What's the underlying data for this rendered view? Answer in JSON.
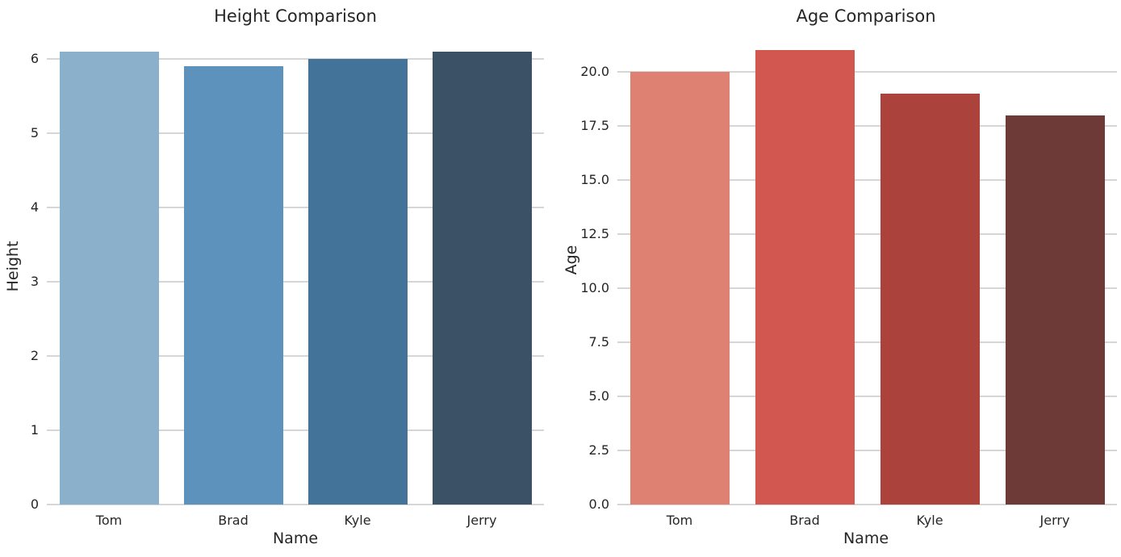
{
  "style": {
    "background": "#ffffff",
    "grid_color": "#d6d6d6",
    "text_color": "#262626"
  },
  "chart_data": [
    {
      "type": "bar",
      "title": "Height Comparison",
      "xlabel": "Name",
      "ylabel": "Height",
      "categories": [
        "Tom",
        "Brad",
        "Kyle",
        "Jerry"
      ],
      "values": [
        6.1,
        5.9,
        6.0,
        6.1
      ],
      "ylim": [
        0,
        6.405
      ],
      "yticks": [
        0,
        1,
        2,
        3,
        4,
        5,
        6
      ],
      "ytick_labels": [
        "0",
        "1",
        "2",
        "3",
        "4",
        "5",
        "6"
      ],
      "bar_colors": [
        "#8ab0cc",
        "#5c92bc",
        "#44739a",
        "#3b5166"
      ],
      "grid": true,
      "legend": "none"
    },
    {
      "type": "bar",
      "title": "Age Comparison",
      "xlabel": "Name",
      "ylabel": "Age",
      "categories": [
        "Tom",
        "Brad",
        "Kyle",
        "Jerry"
      ],
      "values": [
        20,
        21,
        19,
        18
      ],
      "ylim": [
        0,
        22.05
      ],
      "yticks": [
        0,
        2.5,
        5,
        7.5,
        10,
        12.5,
        15,
        17.5,
        20
      ],
      "ytick_labels": [
        "0.0",
        "2.5",
        "5.0",
        "7.5",
        "10.0",
        "12.5",
        "15.0",
        "17.5",
        "20.0"
      ],
      "bar_colors": [
        "#de8172",
        "#d25751",
        "#ac423c",
        "#6e3a37"
      ],
      "grid": true,
      "legend": "none"
    }
  ]
}
